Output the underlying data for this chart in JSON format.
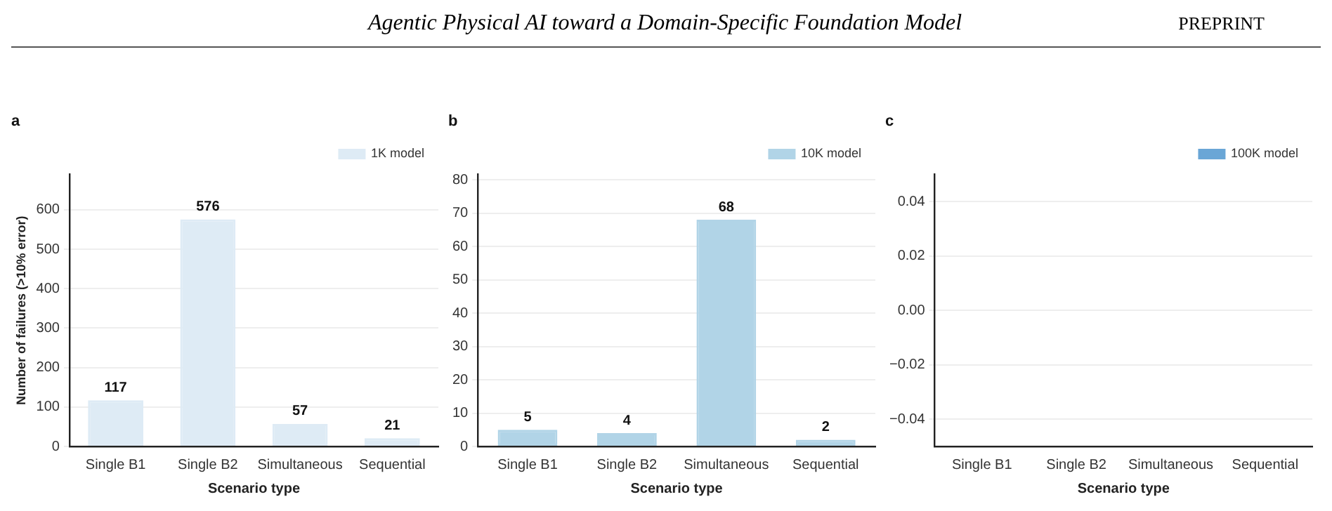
{
  "chart_data": [
    {
      "type": "bar",
      "title": "a",
      "xlabel": "Scenario type",
      "ylabel": "Number of failures (>10% error)",
      "categories": [
        "Single B1",
        "Single B2",
        "Simultaneous",
        "Sequential"
      ],
      "series": [
        {
          "name": "1K model",
          "color": "#deebf5",
          "values": [
            117,
            576,
            57,
            21
          ]
        }
      ],
      "ylim": [
        0,
        690
      ],
      "yticks": [
        0,
        100,
        200,
        300,
        400,
        500,
        600
      ],
      "grid": "y",
      "legend": "top right",
      "data_labels": true,
      "annotations": [
        "Agentic Physical AI toward a Domain-Specific Foundation Model",
        "PREPRINT"
      ]
    },
    {
      "type": "bar",
      "title": "b",
      "xlabel": "Scenario type",
      "categories": [
        "Single B1",
        "Single B2",
        "Simultaneous",
        "Sequential"
      ],
      "series": [
        {
          "name": "10K model",
          "color": "#b1d4e7",
          "values": [
            5,
            4,
            68,
            2
          ]
        }
      ],
      "ylim": [
        0,
        81.6
      ],
      "yticks": [
        0,
        10,
        20,
        30,
        40,
        50,
        60,
        70,
        80
      ],
      "grid": "y",
      "legend": "top right",
      "data_labels": true
    },
    {
      "type": "bar",
      "title": "c",
      "xlabel": "Scenario type",
      "categories": [
        "Single B1",
        "Single B2",
        "Simultaneous",
        "Sequential"
      ],
      "series": [
        {
          "name": "100K model",
          "color": "#6aa6d6",
          "values": [
            0,
            0,
            0,
            0
          ]
        }
      ],
      "ylim": [
        -0.05,
        0.05
      ],
      "yticks": [
        {
          "value": -0.04,
          "label": "−0.04"
        },
        {
          "value": -0.02,
          "label": "−0.02"
        },
        {
          "value": 0,
          "label": "0.00"
        },
        {
          "value": 0.02,
          "label": "0.02"
        },
        {
          "value": 0.04,
          "label": "0.04"
        }
      ],
      "grid": "y",
      "legend": "top right"
    }
  ]
}
